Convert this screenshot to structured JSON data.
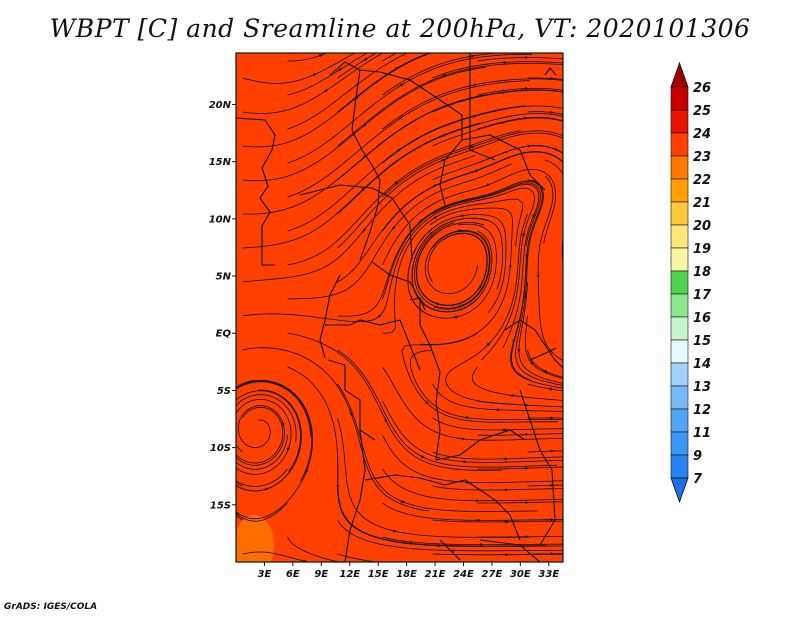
{
  "title": "WBPT [C] and Sreamline at 200hPa, VT: 2020101306",
  "footer": "GrADS: IGES/COLA",
  "map": {
    "field_color": "#ff4000",
    "warm_patch_color": "#ff8000",
    "lat_labels": [
      "20N",
      "15N",
      "10N",
      "5N",
      "EQ",
      "5S",
      "10S",
      "15S"
    ],
    "lat_values": [
      20,
      15,
      10,
      5,
      0,
      -5,
      -10,
      -15
    ],
    "lon_labels": [
      "3E",
      "6E",
      "9E",
      "12E",
      "15E",
      "18E",
      "21E",
      "24E",
      "27E",
      "30E",
      "33E"
    ],
    "lon_values": [
      3,
      6,
      9,
      12,
      15,
      18,
      21,
      24,
      27,
      30,
      33
    ],
    "lat_range": [
      -20,
      24.5
    ],
    "lon_range": [
      0,
      34.5
    ]
  },
  "colorbar": {
    "labels": [
      "7",
      "9",
      "11",
      "12",
      "13",
      "14",
      "15",
      "16",
      "17",
      "18",
      "19",
      "20",
      "21",
      "22",
      "23",
      "24",
      "25",
      "26"
    ],
    "colors": [
      "#1e6ee6",
      "#2882f0",
      "#3c96f5",
      "#50a5f5",
      "#78b9f8",
      "#a0d2fa",
      "#e6fafa",
      "#c8f5c8",
      "#8ce68c",
      "#50d250",
      "#faf5a0",
      "#ffe678",
      "#ffc83c",
      "#ffa000",
      "#ff7800",
      "#ff4000",
      "#e61400",
      "#c80000",
      "#a00000"
    ]
  }
}
